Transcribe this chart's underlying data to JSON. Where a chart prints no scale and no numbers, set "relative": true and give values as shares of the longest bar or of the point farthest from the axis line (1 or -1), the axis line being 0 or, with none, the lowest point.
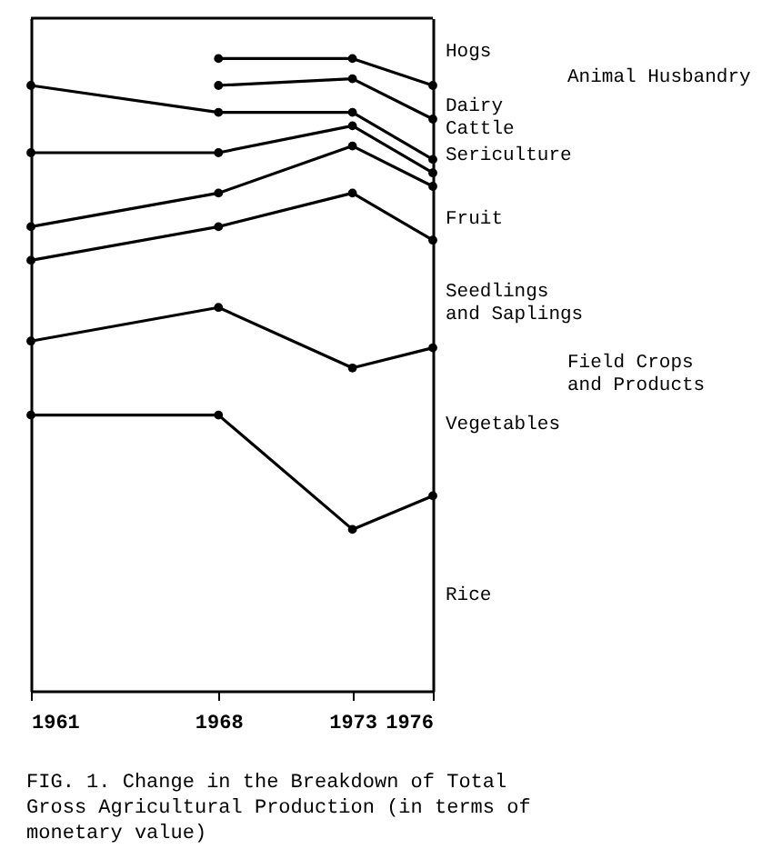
{
  "chart_data": {
    "type": "line",
    "relative": true,
    "grid": false,
    "marker": "circle",
    "line_style": "solid",
    "tick_labels": "x",
    "title": "FIG. 1.  Change in the Breakdown of Total Gross Agricultural Production (in terms of monetary value)",
    "x": [
      1961,
      1968,
      1973,
      1976
    ],
    "xlim": [
      1961,
      1976
    ],
    "xticks": [
      1961,
      1968,
      1973,
      1976
    ],
    "series": [
      {
        "color": "#000000",
        "marker": "none",
        "values": [
          1,
          1,
          1,
          1
        ]
      },
      {
        "color": "#000000",
        "values": [
          null,
          0.94,
          0.94,
          0.9
        ]
      },
      {
        "color": "#000000",
        "values": [
          null,
          0.9,
          0.91,
          0.85
        ]
      },
      {
        "color": "#000000",
        "values": [
          0.9,
          0.86,
          0.86,
          0.79
        ]
      },
      {
        "color": "#000000",
        "values": [
          0.8,
          0.8,
          0.84,
          0.77
        ]
      },
      {
        "color": "#000000",
        "values": [
          0.69,
          0.74,
          0.81,
          0.75
        ]
      },
      {
        "color": "#000000",
        "values": [
          0.64,
          0.69,
          0.74,
          0.67
        ]
      },
      {
        "color": "#000000",
        "values": [
          0.52,
          0.57,
          0.48,
          0.51
        ]
      },
      {
        "color": "#000000",
        "values": [
          0.41,
          0.41,
          0.24,
          0.29
        ]
      }
    ],
    "annotations": [
      "Hogs",
      "Dairy\nCattle",
      "Sericulture",
      "Fruit",
      "Seedlings\nand Saplings",
      "Vegetables",
      "Rice",
      "Animal Husbandry",
      "Field Crops\nand Products"
    ]
  }
}
